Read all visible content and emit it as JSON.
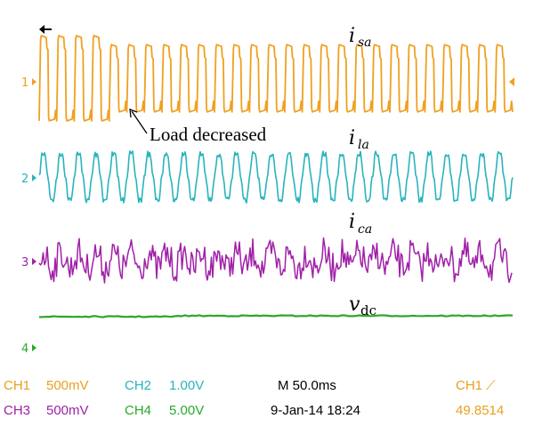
{
  "colors": {
    "ch1": "#f0a020",
    "ch2": "#28b4bc",
    "ch3": "#a020a8",
    "ch4": "#2aa82a",
    "text": "#000000",
    "grid": "#ffffff"
  },
  "chart_data": {
    "type": "line",
    "title": "",
    "xlabel": "",
    "ylabel": "",
    "grid": false,
    "series": [
      {
        "channel": "1",
        "name": "i",
        "name_sub": "sa",
        "waveform": "square-ish current",
        "periods_visible": 27,
        "amplitude_divs": 1.9,
        "amplitude_after_change_divs": 1.5
      },
      {
        "channel": "2",
        "name": "i",
        "name_sub": "la",
        "waveform": "sinusoidal current",
        "periods_visible": 27,
        "amplitude_divs": 1.0
      },
      {
        "channel": "3",
        "name": "i",
        "name_sub": "ca",
        "waveform": "noisy compensating current",
        "amplitude_divs": 0.8
      },
      {
        "channel": "4",
        "name": "v",
        "name_sub": "dc",
        "waveform": "DC level",
        "level_divs": 0.15
      }
    ],
    "annotation": "Load decreased"
  },
  "status_bar": {
    "row1": [
      {
        "label": "CH1",
        "value": "500mV"
      },
      {
        "label": "CH2",
        "value": "1.00V"
      },
      {
        "text": "M 50.0ms"
      },
      {
        "text": "CH1 ⟋"
      }
    ],
    "row2": [
      {
        "label": "CH3",
        "value": "500mV"
      },
      {
        "label": "CH4",
        "value": "5.00V"
      },
      {
        "text": "9-Jan-14 18:24"
      },
      {
        "text": "49.8514"
      }
    ]
  },
  "channel_markers": [
    "1",
    "2",
    "3",
    "4"
  ],
  "trigger_marker_icon": "arrow-left-icon",
  "trigger_level_icon": "triangle-left-icon"
}
